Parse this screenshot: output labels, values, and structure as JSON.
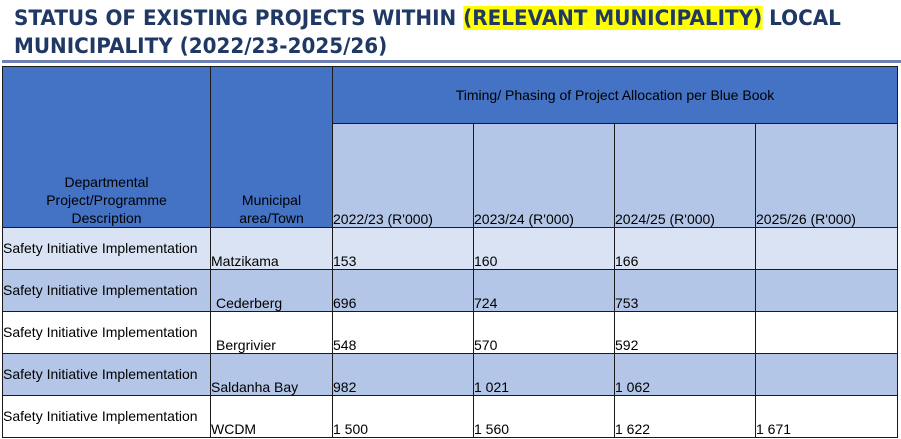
{
  "title": {
    "line1_before": "STATUS OF EXISTING PROJECTS WITHIN ",
    "line1_highlight": "(RELEVANT MUNICIPALITY)",
    "line1_after": " LOCAL",
    "line2": "MUNICIPALITY (2022/23-2025/26)"
  },
  "table": {
    "headers": {
      "description": "Departmental Project/Programme Description",
      "area": "Municipal area/Town",
      "timing": "Timing/ Phasing of Project Allocation per Blue Book",
      "years": [
        "2022/23 (R'000)",
        "2023/24 (R'000)",
        "2024/25 (R'000)",
        "2025/26 (R'000)"
      ]
    },
    "rows": [
      {
        "description": "Safety Initiative Implementation",
        "area": "Matzikama",
        "values": [
          "153",
          "160",
          "166",
          ""
        ]
      },
      {
        "description": "Safety Initiative Implementation",
        "area": "Cederberg",
        "values": [
          "696",
          "724",
          "753",
          ""
        ]
      },
      {
        "description": "Safety Initiative Implementation",
        "area": "Bergrivier",
        "values": [
          "548",
          "570",
          "592",
          ""
        ]
      },
      {
        "description": "Safety Initiative Implementation",
        "area": "Saldanha Bay",
        "values": [
          "982",
          "1 021",
          "1 062",
          ""
        ]
      },
      {
        "description": "Safety Initiative Implementation",
        "area": "WCDM",
        "values": [
          "1 500",
          "1 560",
          "1 622",
          "1 671"
        ]
      }
    ]
  },
  "colors": {
    "title_text": "#1f3864",
    "highlight": "#ffff00",
    "header_dark": "#4472c4",
    "header_light": "#b4c6e7",
    "row_light": "#dae3f3",
    "row_white": "#ffffff"
  }
}
